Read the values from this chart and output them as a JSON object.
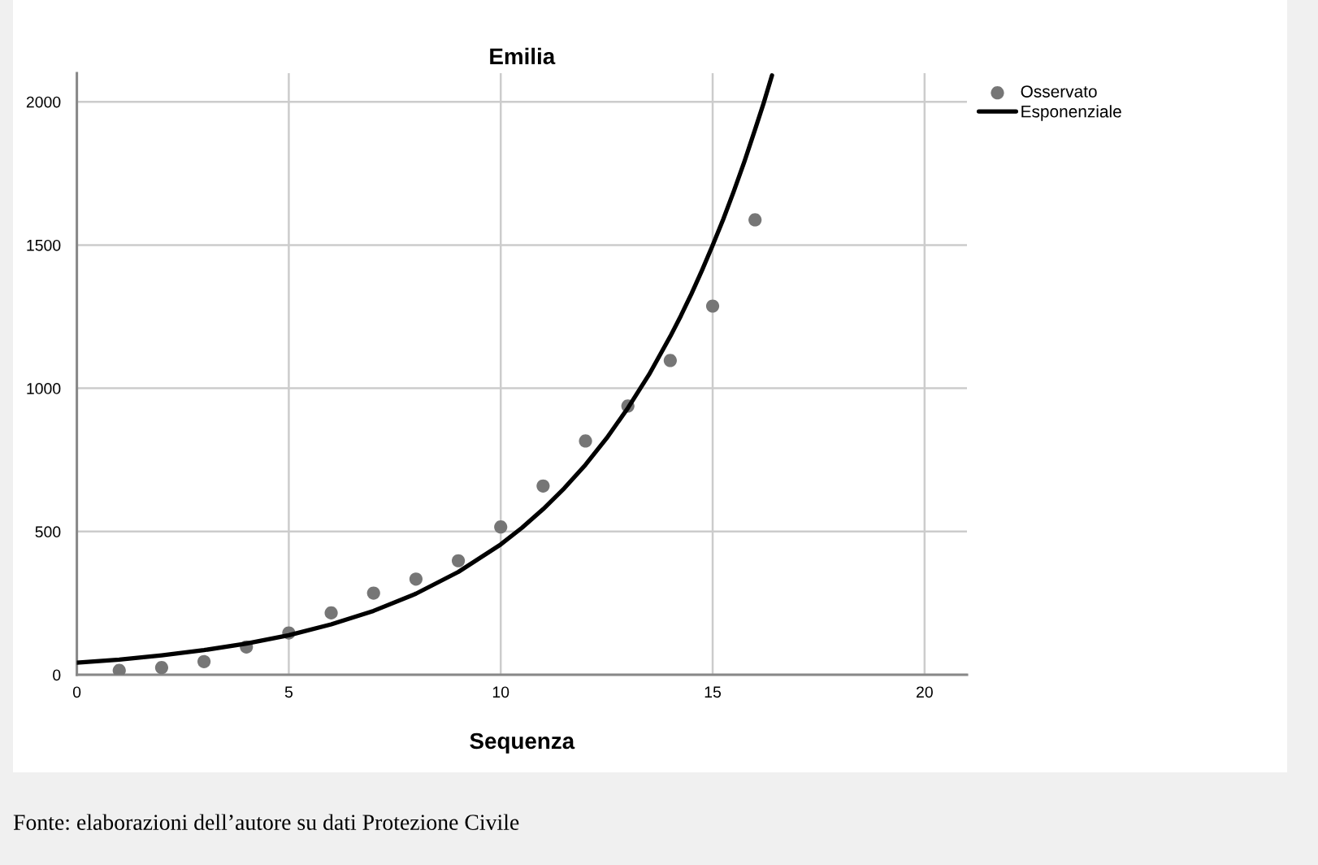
{
  "chart_data": {
    "type": "scatter",
    "title": "Emilia",
    "xlabel": "Sequenza",
    "series": [
      {
        "name": "Osservato",
        "color": "#767676",
        "marker": "circle",
        "x": [
          1,
          2,
          3,
          4,
          5,
          6,
          7,
          8,
          9,
          10,
          11,
          12,
          13,
          14,
          15,
          16
        ],
        "values": [
          15,
          25,
          46,
          97,
          146,
          216,
          285,
          334,
          398,
          516,
          659,
          816,
          938,
          1097,
          1287,
          1588
        ]
      },
      {
        "name": "Esponenziale",
        "type": "line",
        "color": "#000000",
        "marker": "none",
        "line_style": "solid",
        "x": [
          0,
          1,
          2,
          3,
          4,
          5,
          6,
          7,
          8,
          9,
          10,
          10.5,
          11,
          11.5,
          12,
          12.5,
          13,
          13.5,
          14,
          14.25,
          14.5,
          14.75,
          15,
          15.25,
          15.5,
          15.75,
          16,
          16.2,
          16.4
        ],
        "values": [
          42,
          53,
          68,
          86,
          109,
          138,
          176,
          223,
          283,
          359,
          455,
          513,
          578,
          651,
          733,
          826,
          931,
          1048,
          1181,
          1253,
          1330,
          1412,
          1499,
          1590,
          1688,
          1792,
          1903,
          1994,
          2092
        ]
      }
    ],
    "xlim": [
      0,
      21
    ],
    "ylim": [
      0,
      2100
    ],
    "xticks": [
      0,
      5,
      10,
      15,
      20
    ],
    "yticks": [
      0,
      500,
      1000,
      1500,
      2000
    ],
    "grid": true,
    "legend": "top right",
    "annotations": [
      "Fonte: elaborazioni dell’autore su dati Protezione Civile"
    ]
  }
}
